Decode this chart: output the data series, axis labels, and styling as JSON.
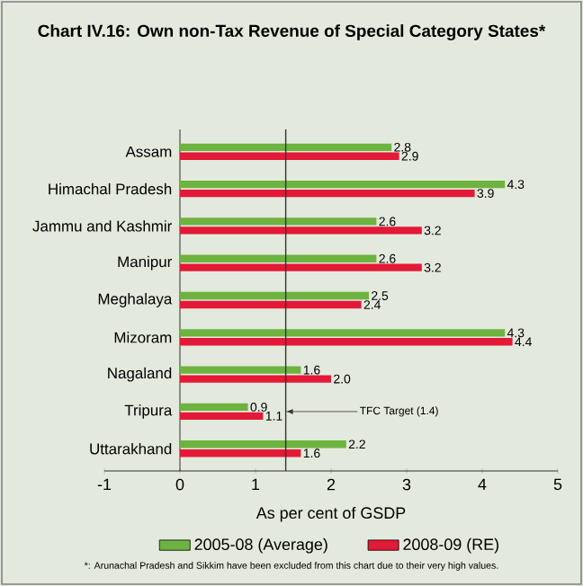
{
  "chart_data": {
    "type": "bar",
    "orientation": "horizontal",
    "title": "Chart IV.16: Own non-Tax Revenue of  Special Category States*",
    "xlabel": "As per cent of GSDP",
    "categories": [
      "Assam",
      "Himachal Pradesh",
      "Jammu and Kashmir",
      "Manipur",
      "Meghalaya",
      "Mizoram",
      "Nagaland",
      "Tripura",
      "Uttarakhand"
    ],
    "series": [
      {
        "name": "2005-08 (Average)",
        "color": "#6db33f",
        "values": [
          2.8,
          4.3,
          2.6,
          2.6,
          2.5,
          4.3,
          1.6,
          0.9,
          2.2
        ],
        "value_labels": [
          "2.8",
          "4.3",
          "2.6",
          "2.6",
          "2.5",
          "4.3",
          "1.6",
          "0.9",
          "2.2"
        ]
      },
      {
        "name": "2008-09 (RE)",
        "color": "#e31937",
        "values": [
          2.9,
          3.9,
          3.2,
          3.2,
          2.4,
          4.4,
          2.0,
          1.1,
          1.6
        ],
        "value_labels": [
          "2.9",
          "3.9",
          "3.2",
          "3.2",
          "2.4",
          "4.4",
          "2.0",
          "1.1",
          "1.6"
        ]
      }
    ],
    "xlim": [
      -1,
      5
    ],
    "xticks": [
      -1,
      0,
      1,
      2,
      3,
      4,
      5
    ],
    "ref_lines": [
      {
        "axis": "x",
        "value": 1.4,
        "label": "TFC Target (1.4)",
        "color": "#333333"
      }
    ],
    "legend": "bottom",
    "annotations": [
      "*: Arunachal Pradesh and Sikkim have been excluded from this chart due to their very high values."
    ]
  }
}
